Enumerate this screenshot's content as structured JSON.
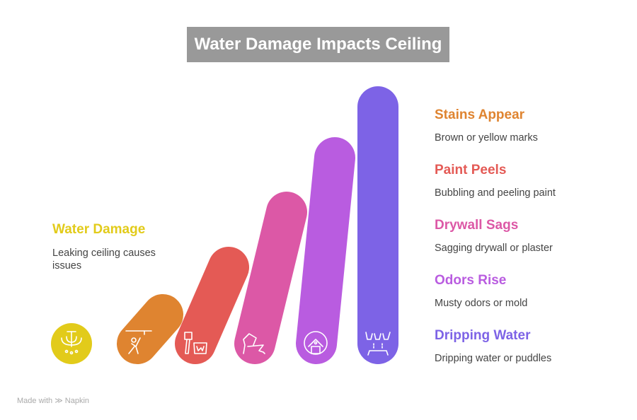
{
  "title": "Water Damage Impacts Ceiling",
  "steps": [
    {
      "title": "Water Damage",
      "description": "Leaking ceiling causes issues",
      "color": "#e2cb1a",
      "icon": "chandelier-icon"
    },
    {
      "title": "Dripping Water",
      "description": "Dripping water or puddles",
      "color": "#7d63e6",
      "icon": "dripping-ceiling-icon"
    },
    {
      "title": "Odors Rise",
      "description": "Musty odors or mold",
      "color": "#b95ce0",
      "icon": "moldy-house-icon"
    },
    {
      "title": "Drywall Sags",
      "description": "Sagging drywall or plaster",
      "color": "#dc58a6",
      "icon": "broken-wall-icon"
    },
    {
      "title": "Paint Peels",
      "description": "Bubbling and peeling paint",
      "color": "#e45a55",
      "icon": "paint-brush-bucket-icon"
    },
    {
      "title": "Stains Appear",
      "description": "Brown or yellow marks",
      "color": "#df8430",
      "icon": "ceiling-worker-icon"
    }
  ],
  "footer": {
    "made_with": "Made with",
    "brand": "Napkin"
  }
}
